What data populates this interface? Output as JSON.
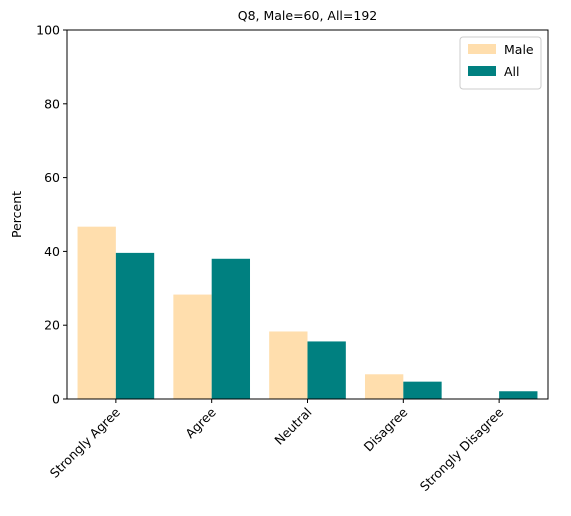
{
  "chart_data": {
    "type": "bar",
    "title": "Q8, Male=60, All=192",
    "xlabel": "",
    "ylabel": "Percent",
    "ylim": [
      0,
      100
    ],
    "yticks": [
      0,
      20,
      40,
      60,
      80,
      100
    ],
    "grid": false,
    "legend_position": "top-right",
    "categories": [
      "Strongly Agree",
      "Agree",
      "Neutral",
      "Disagree",
      "Strongly Disagree"
    ],
    "series": [
      {
        "name": "Male",
        "color": "#FFDEAD",
        "values": [
          46.7,
          28.3,
          18.3,
          6.7,
          0
        ]
      },
      {
        "name": "All",
        "color": "#008080",
        "values": [
          39.6,
          38.0,
          15.6,
          4.7,
          2.1
        ]
      }
    ]
  }
}
